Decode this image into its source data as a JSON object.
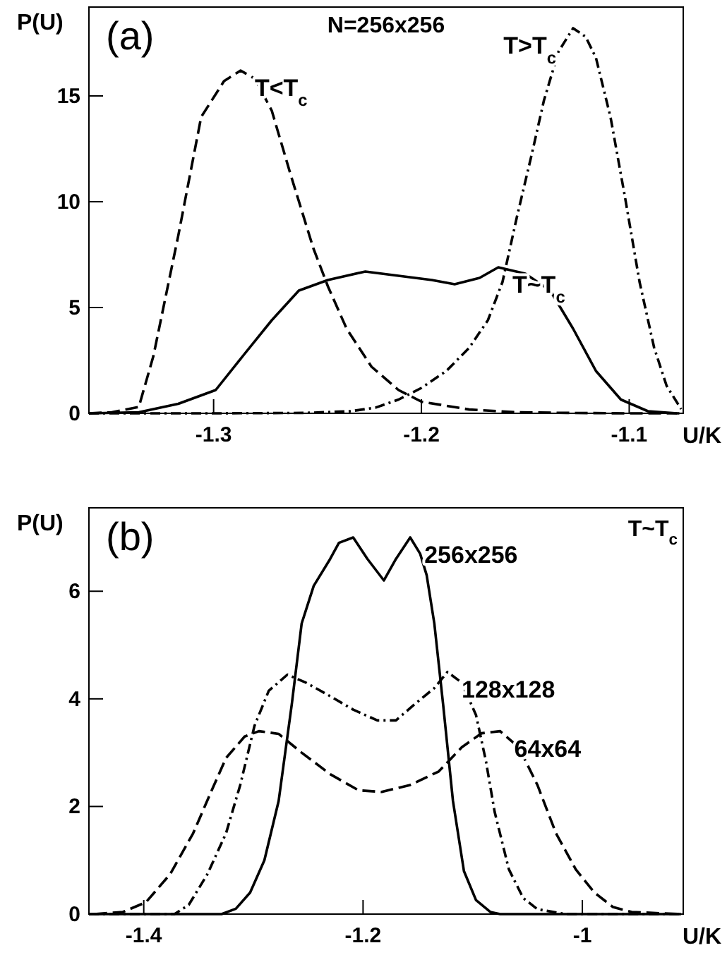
{
  "chart_data": [
    {
      "type": "line",
      "title": "N=256x256",
      "xlabel": "U/K",
      "ylabel": "P(U)",
      "annotations": [
        "(a)"
      ],
      "xlim": [
        -1.36,
        -1.074
      ],
      "ylim": [
        0,
        19.2
      ],
      "xticks": [
        -1.3,
        -1.2,
        -1.1
      ],
      "yticks": [
        0,
        5,
        10,
        15
      ],
      "grid": false,
      "series": [
        {
          "name": "T<T$_{c}$",
          "color": "#000000",
          "line_style": "dashed",
          "x": [
            -1.36,
            -1.349,
            -1.336,
            -1.329,
            -1.317,
            -1.306,
            -1.295,
            -1.287,
            -1.28,
            -1.272,
            -1.263,
            -1.252,
            -1.245,
            -1.236,
            -1.224,
            -1.211,
            -1.2,
            -1.177,
            -1.154,
            -1.13,
            -1.1,
            -1.075
          ],
          "values": [
            0,
            0.05,
            0.3,
            2.7,
            8.4,
            14,
            15.7,
            16.2,
            15.8,
            14.3,
            11.3,
            7.8,
            6.0,
            4.0,
            2.2,
            1.1,
            0.55,
            0.18,
            0.05,
            0.02,
            0,
            0
          ]
        },
        {
          "name": "T>T$_{c}$",
          "color": "#000000",
          "line_style": "dotted",
          "x": [
            -1.36,
            -1.3,
            -1.256,
            -1.234,
            -1.222,
            -1.211,
            -1.2,
            -1.188,
            -1.177,
            -1.168,
            -1.161,
            -1.154,
            -1.147,
            -1.141,
            -1.134,
            -1.127,
            -1.121,
            -1.116,
            -1.109,
            -1.102,
            -1.095,
            -1.088,
            -1.082,
            -1.075
          ],
          "values": [
            0,
            0,
            0.02,
            0.1,
            0.27,
            0.65,
            1.2,
            2.0,
            3.1,
            4.4,
            6.2,
            9.3,
            12.2,
            14.8,
            17.1,
            18.2,
            17.8,
            16.8,
            14.0,
            10.2,
            6.2,
            3.1,
            1.3,
            0.2
          ]
        },
        {
          "name": "T~T$_{c}$",
          "color": "#000000",
          "line_style": "solid",
          "x": [
            -1.36,
            -1.336,
            -1.317,
            -1.299,
            -1.286,
            -1.272,
            -1.259,
            -1.245,
            -1.227,
            -1.211,
            -1.195,
            -1.184,
            -1.172,
            -1.163,
            -1.15,
            -1.138,
            -1.127,
            -1.116,
            -1.104,
            -1.091,
            -1.077
          ],
          "values": [
            0,
            0.05,
            0.45,
            1.1,
            2.7,
            4.4,
            5.8,
            6.3,
            6.7,
            6.5,
            6.3,
            6.1,
            6.4,
            6.9,
            6.6,
            5.8,
            4.0,
            2.0,
            0.65,
            0.1,
            0
          ]
        }
      ]
    },
    {
      "type": "line",
      "subtitle": "T~T$_{c}$",
      "xlabel": "U/K",
      "ylabel": "P(U)",
      "annotations": [
        "(b)"
      ],
      "xlim": [
        -1.45,
        -0.908
      ],
      "ylim": [
        0,
        7.55
      ],
      "xticks": [
        -1.4,
        -1.2,
        -1
      ],
      "yticks": [
        0,
        2,
        4,
        6
      ],
      "grid": false,
      "series": [
        {
          "name": "256x256",
          "color": "#000000",
          "line_style": "solid",
          "x": [
            -1.45,
            -1.329,
            -1.316,
            -1.303,
            -1.29,
            -1.277,
            -1.265,
            -1.256,
            -1.245,
            -1.23,
            -1.222,
            -1.209,
            -1.196,
            -1.181,
            -1.17,
            -1.157,
            -1.148,
            -1.142,
            -1.135,
            -1.127,
            -1.118,
            -1.108,
            -1.097,
            -1.084,
            -1.075,
            -0.91
          ],
          "values": [
            0,
            0,
            0.1,
            0.4,
            1.0,
            2.1,
            3.9,
            5.4,
            6.1,
            6.6,
            6.9,
            7.0,
            6.6,
            6.2,
            6.6,
            7.0,
            6.7,
            6.3,
            5.4,
            3.9,
            2.1,
            0.8,
            0.26,
            0.04,
            0,
            0
          ]
        },
        {
          "name": "128x128",
          "color": "#000000",
          "line_style": "dotted",
          "x": [
            -1.45,
            -1.372,
            -1.359,
            -1.342,
            -1.325,
            -1.312,
            -1.299,
            -1.286,
            -1.269,
            -1.252,
            -1.23,
            -1.209,
            -1.187,
            -1.17,
            -1.153,
            -1.135,
            -1.123,
            -1.11,
            -1.097,
            -1.088,
            -1.08,
            -1.067,
            -1.054,
            -1.041,
            -1.015,
            -0.91
          ],
          "values": [
            0,
            0,
            0.17,
            0.74,
            1.5,
            2.4,
            3.5,
            4.15,
            4.45,
            4.3,
            4.05,
            3.8,
            3.6,
            3.6,
            3.9,
            4.2,
            4.5,
            4.3,
            3.7,
            2.85,
            1.9,
            0.83,
            0.3,
            0.09,
            0,
            0
          ]
        },
        {
          "name": "64x64",
          "color": "#000000",
          "line_style": "dashed",
          "x": [
            -1.445,
            -1.419,
            -1.398,
            -1.376,
            -1.355,
            -1.338,
            -1.325,
            -1.308,
            -1.295,
            -1.277,
            -1.256,
            -1.23,
            -1.204,
            -1.183,
            -1.157,
            -1.131,
            -1.11,
            -1.092,
            -1.075,
            -1.058,
            -1.041,
            -1.024,
            -1.006,
            -0.989,
            -0.972,
            -0.955,
            -0.912
          ],
          "values": [
            0,
            0.04,
            0.22,
            0.74,
            1.5,
            2.3,
            2.9,
            3.3,
            3.4,
            3.35,
            3.0,
            2.6,
            2.3,
            2.27,
            2.4,
            2.65,
            3.1,
            3.36,
            3.4,
            3.1,
            2.4,
            1.5,
            0.83,
            0.4,
            0.13,
            0.04,
            0
          ]
        }
      ]
    }
  ]
}
